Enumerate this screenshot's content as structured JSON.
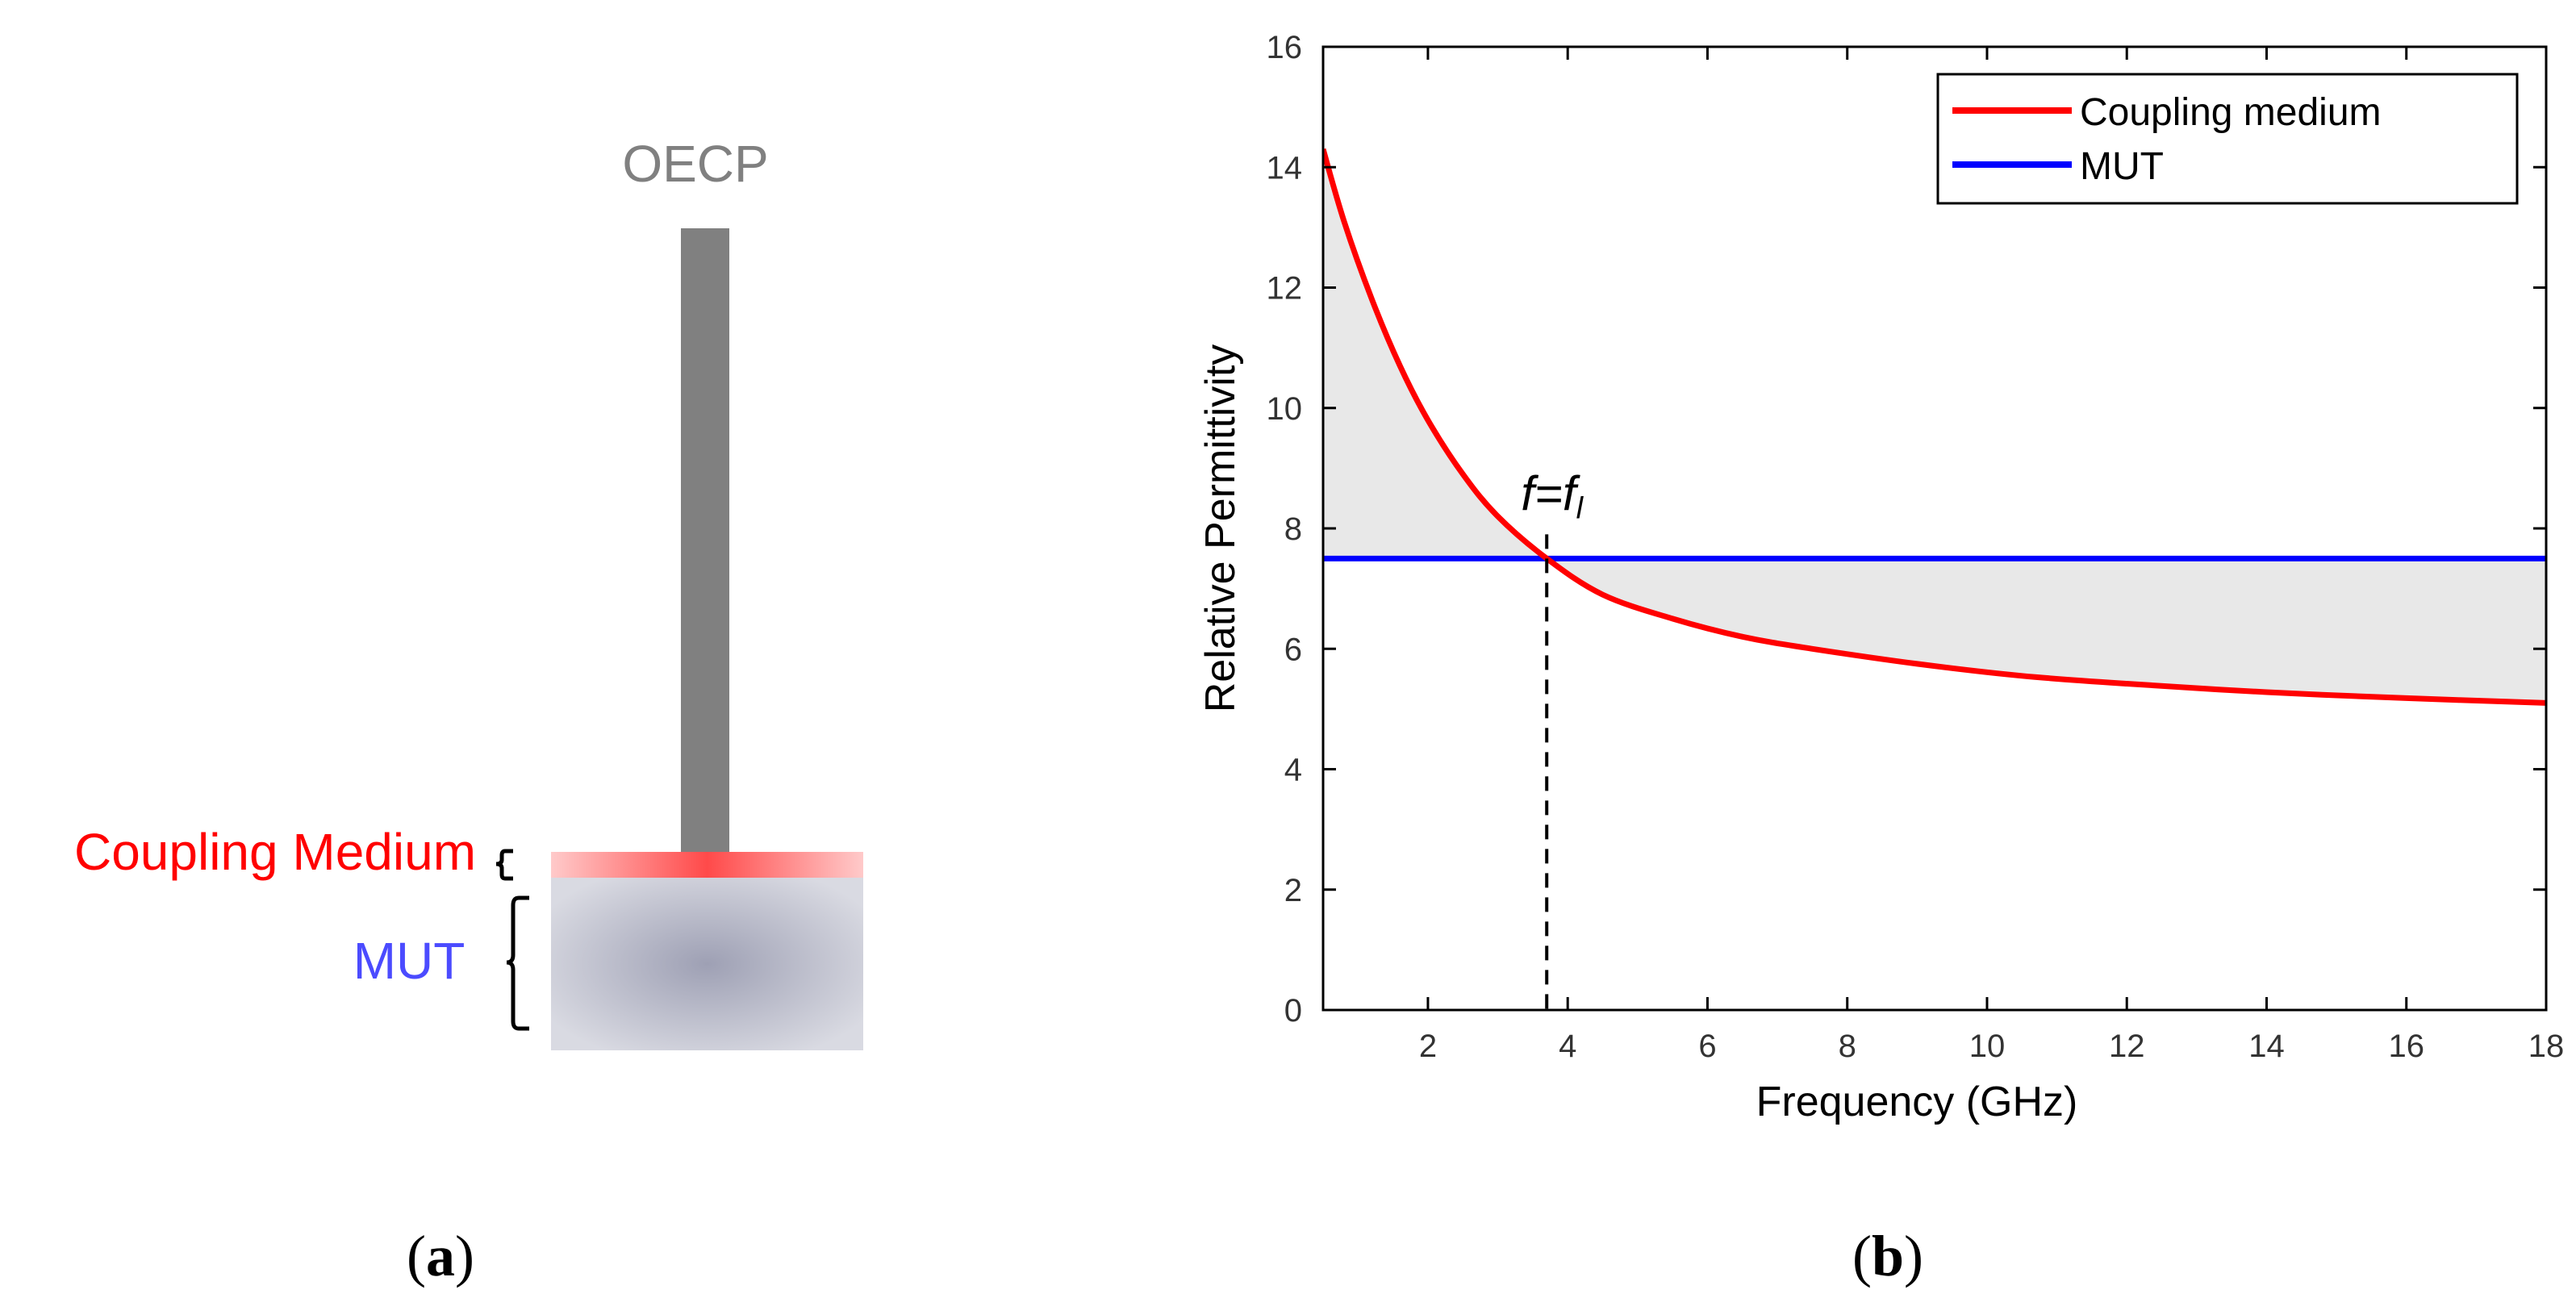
{
  "panel_a": {
    "probe_label": "OECP",
    "coupling_label": "Coupling Medium",
    "mut_label": "MUT",
    "caption": "(a)",
    "caption_letter": "a",
    "colors": {
      "probe": "#808080",
      "coupling": "#ff2a2a",
      "mut_center": "#9ea0b4",
      "mut_edge": "#d9dae2",
      "coupling_text": "#ff0000",
      "mut_text": "#4b4bff"
    }
  },
  "panel_b": {
    "caption": "(b)",
    "caption_letter": "b",
    "marker_text": "f=f",
    "marker_sub": "l",
    "colors": {
      "coupling": "#ff0000",
      "mut": "#0000ff",
      "fill": "#e8e8e8"
    }
  },
  "chart_data": {
    "type": "line",
    "xlabel": "Frequency (GHz)",
    "ylabel": "Relative Permittivity",
    "xlim": [
      0.5,
      18
    ],
    "ylim": [
      0,
      16
    ],
    "xticks": [
      2,
      4,
      6,
      8,
      10,
      12,
      14,
      16,
      18
    ],
    "yticks": [
      0,
      2,
      4,
      6,
      8,
      10,
      12,
      14,
      16
    ],
    "legend_position": "top-right",
    "grid": false,
    "intersection_x": 3.7,
    "shaded_between_series": true,
    "series": [
      {
        "name": "Coupling medium",
        "color": "#ff0000",
        "x": [
          0.5,
          0.8,
          1.2,
          1.6,
          2.0,
          2.5,
          3.0,
          3.7,
          4.5,
          5.5,
          6.5,
          7.5,
          9.0,
          10.5,
          12.0,
          14.0,
          16.0,
          18.0
        ],
        "values": [
          14.3,
          13.1,
          11.8,
          10.7,
          9.8,
          8.9,
          8.2,
          7.5,
          6.9,
          6.5,
          6.2,
          6.0,
          5.75,
          5.55,
          5.42,
          5.28,
          5.18,
          5.1
        ]
      },
      {
        "name": "MUT",
        "color": "#0000ff",
        "x": [
          0.5,
          18
        ],
        "values": [
          7.5,
          7.5
        ]
      }
    ]
  }
}
